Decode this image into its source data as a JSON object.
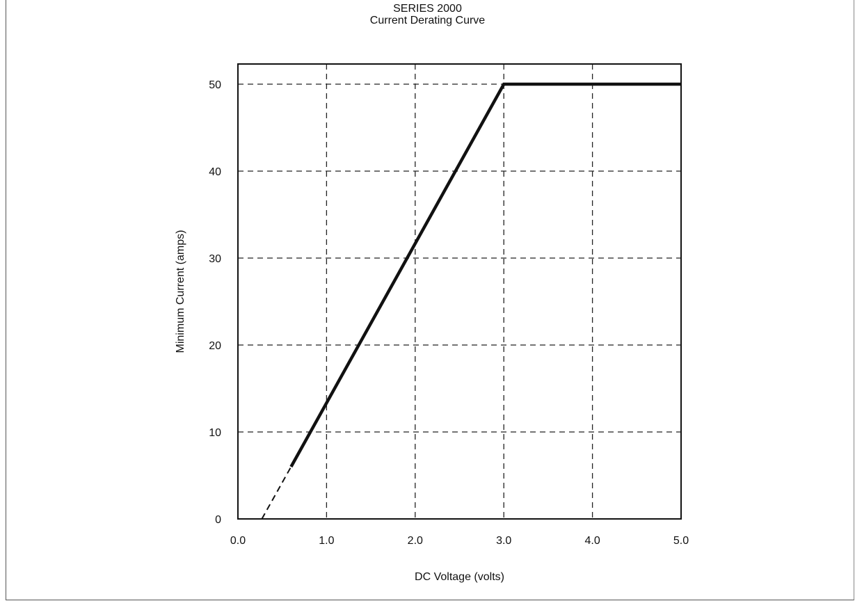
{
  "chart_data": {
    "type": "line",
    "title": "SERIES 2000",
    "subtitle": "Current Derating Curve",
    "xlabel": "DC Voltage (volts)",
    "ylabel": "Minimum Current (amps)",
    "xlim": [
      0.0,
      5.0
    ],
    "ylim": [
      0,
      52
    ],
    "x_ticks": [
      0.0,
      1.0,
      2.0,
      3.0,
      4.0,
      5.0
    ],
    "x_tick_labels": [
      "0.0",
      "1.0",
      "2.0",
      "3.0",
      "4.0",
      "5.0"
    ],
    "y_ticks": [
      0,
      10,
      20,
      30,
      40,
      50
    ],
    "y_tick_labels": [
      "0",
      "10",
      "20",
      "30",
      "40",
      "50"
    ],
    "grid": true,
    "grid_style": "dashed",
    "series": [
      {
        "style": "solid",
        "x": [
          0.6,
          3.0,
          5.0
        ],
        "y": [
          6,
          50,
          50
        ]
      },
      {
        "style": "dashed",
        "x": [
          0.27,
          0.6
        ],
        "y": [
          0,
          6
        ]
      }
    ],
    "colors": {
      "line": "#111111",
      "grid": "#222222",
      "frame": "#111111"
    }
  }
}
